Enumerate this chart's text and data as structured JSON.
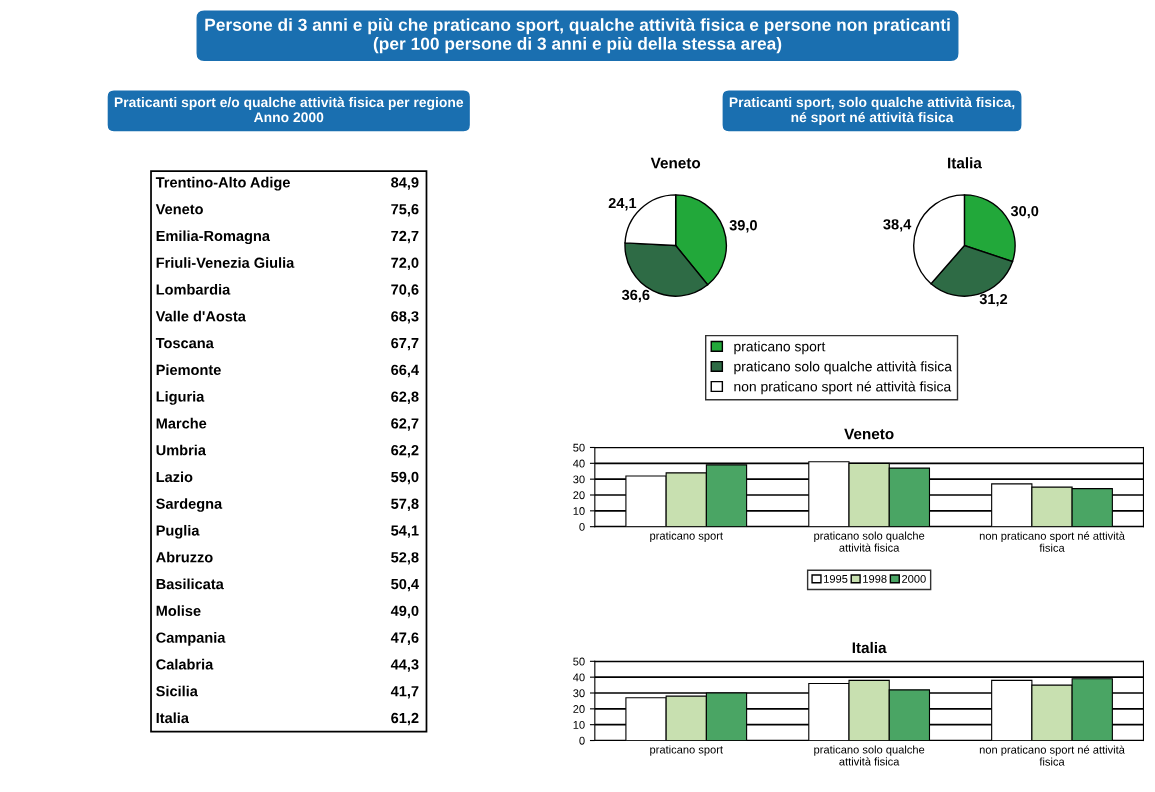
{
  "chart_data": [
    {
      "type": "other",
      "title": "Persone di 3 anni e più che praticano sport, qualche attività fisica e persone non praticanti\n(per 100 persone di 3 anni e più della stessa area)",
      "subtitle": "Praticanti sport e/o qualche attività fisica per regione\nAnno 2000",
      "categories": [
        "Trentino-Alto Adige",
        "Veneto",
        "Emilia-Romagna",
        "Friuli-Venezia Giulia",
        "Lombardia",
        "Valle d'Aosta",
        "Toscana",
        "Piemonte",
        "Liguria",
        "Marche",
        "Umbria",
        "Lazio",
        "Sardegna",
        "Puglia",
        "Abruzzo",
        "Basilicata",
        "Molise",
        "Campania",
        "Calabria",
        "Sicilia",
        "Italia"
      ],
      "values": [
        84.9,
        75.6,
        72.7,
        72.0,
        70.6,
        68.3,
        67.7,
        66.4,
        62.8,
        62.7,
        62.2,
        59.0,
        57.8,
        54.1,
        52.8,
        50.4,
        49.0,
        47.6,
        44.3,
        41.7,
        61.2
      ],
      "value_labels": [
        "84,9",
        "75,6",
        "72,7",
        "72,0",
        "70,6",
        "68,3",
        "67,7",
        "66,4",
        "62,8",
        "62,7",
        "62,2",
        "59,0",
        "57,8",
        "54,1",
        "52,8",
        "50,4",
        "49,0",
        "47,6",
        "44,3",
        "41,7",
        "61,2"
      ]
    },
    {
      "type": "pie",
      "title": "Veneto",
      "subtitle": "Praticanti sport, solo qualche attività fisica,\nné sport né attività fisica",
      "categories": [
        "praticano sport",
        "praticano solo qualche attività fisica",
        "non praticano sport né attività fisica"
      ],
      "values": [
        39.0,
        36.6,
        24.1
      ],
      "value_labels": [
        "39,0",
        "36,6",
        "24,1"
      ],
      "colors": [
        "#22a83a",
        "#2e6b45",
        "#ffffff"
      ],
      "legend": "bottom"
    },
    {
      "type": "pie",
      "title": "Italia",
      "categories": [
        null,
        null,
        null
      ],
      "values": [
        30.0,
        31.2,
        38.4
      ],
      "value_labels": [
        "30,0",
        "31,2",
        "38,4"
      ],
      "colors": [
        "#22a83a",
        "#2e6b45",
        "#ffffff"
      ]
    },
    {
      "type": "bar",
      "title": "Veneto",
      "categories": [
        "praticano sport",
        "praticano solo qualche\nattività fisica",
        "non praticano sport né attività\nfisica"
      ],
      "series": [
        {
          "name": "1995",
          "color": "#ffffff",
          "values": [
            32,
            41,
            27
          ]
        },
        {
          "name": "1998",
          "color": "#c8e0b0",
          "values": [
            34,
            40,
            25
          ]
        },
        {
          "name": "2000",
          "color": "#4aa564",
          "values": [
            39,
            37,
            24
          ]
        }
      ],
      "ylim": [
        0,
        50
      ],
      "yticks": [
        0,
        10,
        20,
        30,
        40,
        50
      ],
      "grid": "y",
      "legend": "bottom"
    },
    {
      "type": "bar",
      "title": "Italia",
      "categories": [
        "praticano sport",
        "praticano solo qualche\nattività fisica",
        "non praticano sport né attività\nfisica"
      ],
      "series": [
        {
          "color": "#ffffff",
          "values": [
            27,
            36,
            38
          ]
        },
        {
          "color": "#c8e0b0",
          "values": [
            28,
            38,
            35
          ]
        },
        {
          "color": "#4aa564",
          "values": [
            30,
            32,
            39
          ]
        }
      ],
      "ylim": [
        0,
        50
      ],
      "yticks": [
        0,
        10,
        20,
        30,
        40,
        50
      ],
      "grid": "y"
    }
  ]
}
